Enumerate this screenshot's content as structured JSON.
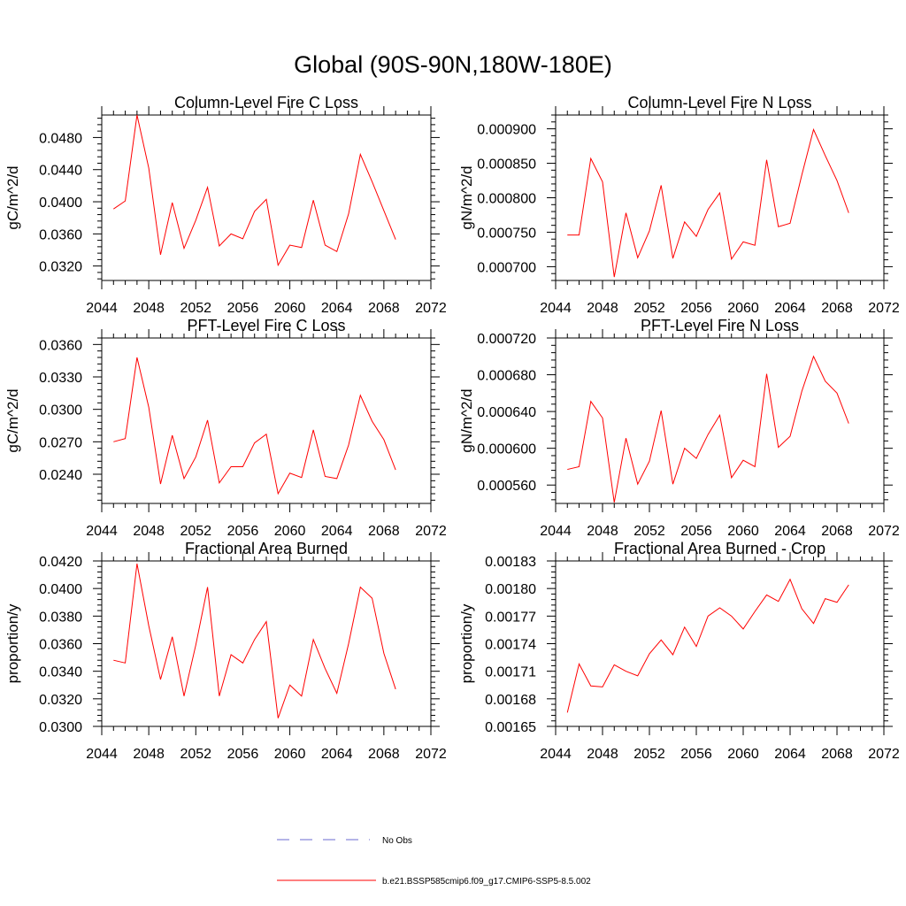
{
  "page": {
    "title": "Global (90S-90N,180W-180E)"
  },
  "legend": {
    "obs_label": "No Obs",
    "obs_color": "#6a6ad0",
    "model_label": "b.e21.BSSP585cmip6.f09_g17.CMIP6-SSP5-8.5.002",
    "model_color": "#ff0000"
  },
  "chart_data": [
    {
      "type": "line",
      "title": "Column-Level Fire C Loss",
      "ylabel": "gC/m^2/d",
      "xlim": [
        2044,
        2072
      ],
      "xticks": [
        "2044",
        "2048",
        "2052",
        "2056",
        "2060",
        "2064",
        "2068",
        "2072"
      ],
      "ylim": [
        0.0302,
        0.0508
      ],
      "yticks": [
        "0.0320",
        "0.0360",
        "0.0400",
        "0.0440",
        "0.0480"
      ],
      "x": [
        2045,
        2046,
        2047,
        2048,
        2049,
        2050,
        2051,
        2052,
        2053,
        2054,
        2055,
        2056,
        2057,
        2058,
        2059,
        2060,
        2061,
        2062,
        2063,
        2064,
        2065,
        2066,
        2067,
        2068,
        2069
      ],
      "series": [
        {
          "name": "b.e21.BSSP585cmip6.f09_g17.CMIP6-SSP5-8.5.002",
          "color": "#ff0000",
          "values": [
            0.0391,
            0.0401,
            0.0508,
            0.0442,
            0.0334,
            0.0399,
            0.0342,
            0.0377,
            0.0418,
            0.0345,
            0.036,
            0.0354,
            0.0388,
            0.0403,
            0.0321,
            0.0346,
            0.0343,
            0.0402,
            0.0346,
            0.0338,
            0.0385,
            0.0459,
            0.0425,
            0.0389,
            0.0353
          ]
        }
      ]
    },
    {
      "type": "line",
      "title": "Column-Level Fire N Loss",
      "ylabel": "gN/m^2/d",
      "xlim": [
        2044,
        2072
      ],
      "xticks": [
        "2044",
        "2048",
        "2052",
        "2056",
        "2060",
        "2064",
        "2068",
        "2072"
      ],
      "ylim": [
        0.00068,
        0.00092
      ],
      "yticks": [
        "0.000700",
        "0.000750",
        "0.000800",
        "0.000850",
        "0.000900"
      ],
      "x": [
        2045,
        2046,
        2047,
        2048,
        2049,
        2050,
        2051,
        2052,
        2053,
        2054,
        2055,
        2056,
        2057,
        2058,
        2059,
        2060,
        2061,
        2062,
        2063,
        2064,
        2065,
        2066,
        2067,
        2068,
        2069
      ],
      "series": [
        {
          "name": "b.e21.BSSP585cmip6.f09_g17.CMIP6-SSP5-8.5.002",
          "color": "#ff0000",
          "values": [
            0.000746,
            0.000746,
            0.000857,
            0.000823,
            0.000685,
            0.000778,
            0.000713,
            0.000752,
            0.000818,
            0.000712,
            0.000765,
            0.000744,
            0.000783,
            0.000807,
            0.000711,
            0.000736,
            0.000731,
            0.000855,
            0.000758,
            0.000763,
            0.000833,
            0.000899,
            0.000861,
            0.000825,
            0.000778
          ]
        }
      ]
    },
    {
      "type": "line",
      "title": "PFT-Level Fire C Loss",
      "ylabel": "gC/m^2/d",
      "xlim": [
        2044,
        2072
      ],
      "xticks": [
        "2044",
        "2048",
        "2052",
        "2056",
        "2060",
        "2064",
        "2068",
        "2072"
      ],
      "ylim": [
        0.0213,
        0.0366
      ],
      "yticks": [
        "0.0240",
        "0.0270",
        "0.0300",
        "0.0330",
        "0.0360"
      ],
      "x": [
        2045,
        2046,
        2047,
        2048,
        2049,
        2050,
        2051,
        2052,
        2053,
        2054,
        2055,
        2056,
        2057,
        2058,
        2059,
        2060,
        2061,
        2062,
        2063,
        2064,
        2065,
        2066,
        2067,
        2068,
        2069
      ],
      "series": [
        {
          "name": "b.e21.BSSP585cmip6.f09_g17.CMIP6-SSP5-8.5.002",
          "color": "#ff0000",
          "values": [
            0.027,
            0.0273,
            0.0348,
            0.0302,
            0.0231,
            0.0276,
            0.0236,
            0.0256,
            0.029,
            0.0232,
            0.0247,
            0.0247,
            0.0269,
            0.0277,
            0.0222,
            0.0241,
            0.0237,
            0.0281,
            0.0238,
            0.0236,
            0.0267,
            0.0313,
            0.0289,
            0.0272,
            0.0244
          ]
        }
      ]
    },
    {
      "type": "line",
      "title": "PFT-Level Fire N Loss",
      "ylabel": "gN/m^2/d",
      "xlim": [
        2044,
        2072
      ],
      "xticks": [
        "2044",
        "2048",
        "2052",
        "2056",
        "2060",
        "2064",
        "2068",
        "2072"
      ],
      "ylim": [
        0.00054,
        0.00072
      ],
      "yticks": [
        "0.000560",
        "0.000600",
        "0.000640",
        "0.000680",
        "0.000720"
      ],
      "x": [
        2045,
        2046,
        2047,
        2048,
        2049,
        2050,
        2051,
        2052,
        2053,
        2054,
        2055,
        2056,
        2057,
        2058,
        2059,
        2060,
        2061,
        2062,
        2063,
        2064,
        2065,
        2066,
        2067,
        2068,
        2069
      ],
      "series": [
        {
          "name": "b.e21.BSSP585cmip6.f09_g17.CMIP6-SSP5-8.5.002",
          "color": "#ff0000",
          "values": [
            0.000577,
            0.00058,
            0.000651,
            0.000633,
            0.000541,
            0.000611,
            0.000561,
            0.000586,
            0.000641,
            0.000561,
            0.0006,
            0.000589,
            0.000615,
            0.000636,
            0.000568,
            0.000587,
            0.00058,
            0.000681,
            0.000601,
            0.000613,
            0.000662,
            0.0007,
            0.000673,
            0.00066,
            0.000627
          ]
        }
      ]
    },
    {
      "type": "line",
      "title": "Fractional Area Burned",
      "ylabel": "proportion/y",
      "xlim": [
        2044,
        2072
      ],
      "xticks": [
        "2044",
        "2048",
        "2052",
        "2056",
        "2060",
        "2064",
        "2068",
        "2072"
      ],
      "ylim": [
        0.03,
        0.042
      ],
      "yticks": [
        "0.0300",
        "0.0320",
        "0.0340",
        "0.0360",
        "0.0380",
        "0.0400",
        "0.0420"
      ],
      "x": [
        2045,
        2046,
        2047,
        2048,
        2049,
        2050,
        2051,
        2052,
        2053,
        2054,
        2055,
        2056,
        2057,
        2058,
        2059,
        2060,
        2061,
        2062,
        2063,
        2064,
        2065,
        2066,
        2067,
        2068,
        2069
      ],
      "series": [
        {
          "name": "b.e21.BSSP585cmip6.f09_g17.CMIP6-SSP5-8.5.002",
          "color": "#ff0000",
          "values": [
            0.0348,
            0.0346,
            0.0418,
            0.0373,
            0.0334,
            0.0365,
            0.0322,
            0.0359,
            0.0401,
            0.0322,
            0.0352,
            0.0346,
            0.0363,
            0.0376,
            0.0306,
            0.033,
            0.0322,
            0.0363,
            0.0342,
            0.0324,
            0.036,
            0.0401,
            0.0393,
            0.0353,
            0.0327
          ]
        }
      ]
    },
    {
      "type": "line",
      "title": "Fractional Area Burned - Crop",
      "ylabel": "proportion/y",
      "xlim": [
        2044,
        2072
      ],
      "xticks": [
        "2044",
        "2048",
        "2052",
        "2056",
        "2060",
        "2064",
        "2068",
        "2072"
      ],
      "ylim": [
        0.00165,
        0.00183
      ],
      "yticks": [
        "0.00165",
        "0.00168",
        "0.00171",
        "0.00174",
        "0.00177",
        "0.00180",
        "0.00183"
      ],
      "x": [
        2045,
        2046,
        2047,
        2048,
        2049,
        2050,
        2051,
        2052,
        2053,
        2054,
        2055,
        2056,
        2057,
        2058,
        2059,
        2060,
        2061,
        2062,
        2063,
        2064,
        2065,
        2066,
        2067,
        2068,
        2069
      ],
      "series": [
        {
          "name": "b.e21.BSSP585cmip6.f09_g17.CMIP6-SSP5-8.5.002",
          "color": "#ff0000",
          "values": [
            0.001665,
            0.001718,
            0.001694,
            0.001693,
            0.001717,
            0.00171,
            0.001705,
            0.001729,
            0.001744,
            0.001728,
            0.001758,
            0.001737,
            0.00177,
            0.001779,
            0.00177,
            0.001756,
            0.001775,
            0.001793,
            0.001786,
            0.00181,
            0.001778,
            0.001762,
            0.001789,
            0.001785,
            0.001804
          ]
        }
      ]
    }
  ]
}
